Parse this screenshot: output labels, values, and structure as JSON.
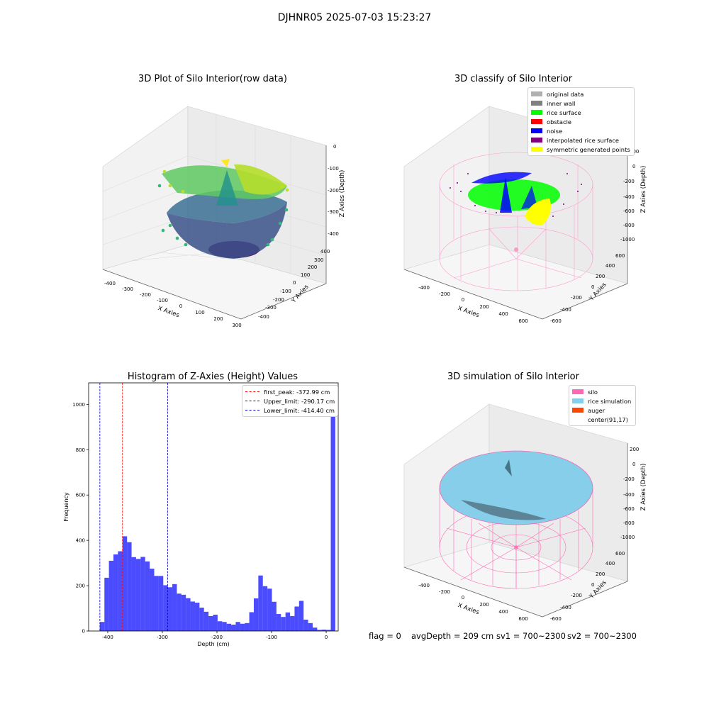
{
  "suptitle": "DJHNR05 2025-07-03 15:23:27",
  "chart_data": [
    {
      "type": "scatter",
      "title": "3D Plot of Silo Interior(row data)",
      "xlabel": "X Axies",
      "ylabel": "Y Axies",
      "zlabel": "Z Axies (Depth)",
      "x_ticks": [
        "-400",
        "-300",
        "-200",
        "-100",
        "0",
        "100",
        "200",
        "300"
      ],
      "y_ticks": [
        "400",
        "300",
        "200",
        "100",
        "0",
        "-100",
        "-200",
        "-300",
        "-400"
      ],
      "z_ticks": [
        "0",
        "-100",
        "-200",
        "-300",
        "-400"
      ],
      "colormap": "viridis"
    },
    {
      "type": "scatter",
      "title": "3D classify of Silo Interior",
      "xlabel": "X Axies",
      "ylabel": "Y Axies",
      "zlabel": "Z Axies (Depth)",
      "x_ticks": [
        "-400",
        "-200",
        "0",
        "200",
        "400",
        "600"
      ],
      "y_ticks": [
        "600",
        "400",
        "200",
        "0",
        "-200",
        "-400",
        "-600"
      ],
      "z_ticks": [
        "200",
        "0",
        "-200",
        "-400",
        "-600",
        "-800",
        "-1000"
      ],
      "legend": [
        {
          "label": "original data",
          "color": "#b0b0b0"
        },
        {
          "label": "inner wall",
          "color": "#808080"
        },
        {
          "label": "rice surface",
          "color": "#00ff00"
        },
        {
          "label": "obstacle",
          "color": "#ff0000"
        },
        {
          "label": "noise",
          "color": "#0000ff"
        },
        {
          "label": "interpolated rice surface",
          "color": "#800080"
        },
        {
          "label": "symmetric generated points",
          "color": "#ffff00"
        }
      ]
    },
    {
      "type": "bar",
      "title": "Histogram of Z-Axies (Height) Values",
      "xlabel": "Depth (cm)",
      "ylabel": "Frequency",
      "xlim": [
        -435,
        22
      ],
      "ylim": [
        0,
        1095
      ],
      "x_ticks": [
        -400,
        -300,
        -200,
        -100,
        0
      ],
      "y_ticks": [
        0,
        200,
        400,
        600,
        800,
        1000
      ],
      "bin_start": -414.4,
      "bin_width": 8.29,
      "values": [
        40,
        235,
        310,
        338,
        352,
        418,
        392,
        326,
        318,
        327,
        307,
        275,
        243,
        243,
        202,
        193,
        207,
        165,
        160,
        145,
        130,
        125,
        103,
        85,
        66,
        72,
        43,
        40,
        32,
        28,
        40,
        32,
        35,
        83,
        144,
        245,
        198,
        187,
        129,
        75,
        62,
        82,
        66,
        108,
        133,
        50,
        35,
        15,
        5,
        6,
        5,
        1040
      ],
      "bar_color": "#0000ff",
      "lines": [
        {
          "label": "first_peak: -372.99 cm",
          "x": -372.99,
          "color": "#ff0000"
        },
        {
          "label": "Upper_limit: -290.17 cm",
          "x": -290.17,
          "color": "#0000c8"
        },
        {
          "label": "Lower_limit: -414.40 cm",
          "x": -414.4,
          "color": "#0000c8"
        }
      ]
    },
    {
      "type": "area",
      "title": "3D simulation of Silo Interior",
      "xlabel": "X Axies",
      "ylabel": "Y Axies",
      "zlabel": "Z Axies (Depth)",
      "x_ticks": [
        "-400",
        "-200",
        "0",
        "200",
        "400",
        "600"
      ],
      "y_ticks": [
        "600",
        "400",
        "200",
        "0",
        "-200",
        "-400",
        "-600"
      ],
      "z_ticks": [
        "200",
        "0",
        "-200",
        "-400",
        "-600",
        "-800",
        "-1000"
      ],
      "legend": [
        {
          "label": "silo",
          "color": "#ff69b4"
        },
        {
          "label": "rice simulation",
          "color": "#87ceeb"
        },
        {
          "label": "auger",
          "color": "#ff4500"
        },
        {
          "label": "center(91,17)",
          "color": ""
        }
      ]
    }
  ],
  "footer": {
    "flag": "flag = 0",
    "avg_depth": "avgDepth = 209 cm",
    "sv1": "sv1 = 700~2300",
    "sv2": "sv2 = 700~2300"
  }
}
